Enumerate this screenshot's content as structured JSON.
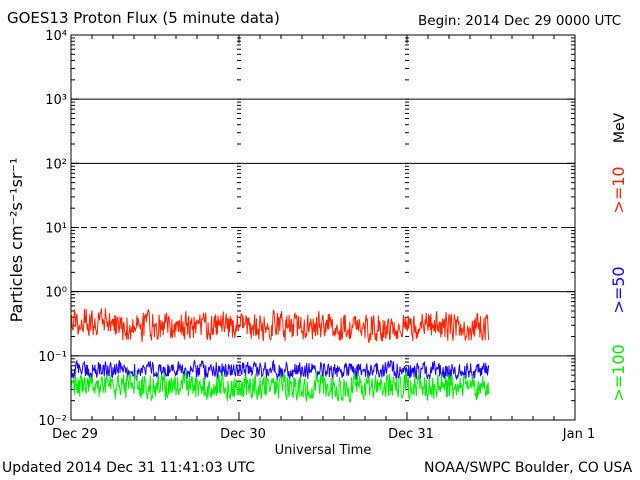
{
  "header": {
    "title": "GOES13 Proton Flux (5 minute data)",
    "begin": "Begin: 2014 Dec 29 0000 UTC"
  },
  "footer": {
    "updated": "Updated 2014 Dec 31 11:41:03 UTC",
    "source": "NOAA/SWPC Boulder, CO USA"
  },
  "chart_data": {
    "type": "line",
    "title": "GOES13 Proton Flux (5 minute data)",
    "xlabel": "Universal Time",
    "ylabel": "Particles cm⁻²s⁻¹sr⁻¹",
    "y_scale": "log",
    "ylim": [
      0.01,
      10000
    ],
    "xlim": [
      "2014-12-29 00:00",
      "2015-01-01 00:00"
    ],
    "x_ticks": [
      "Dec 29",
      "Dec 30",
      "Dec 31",
      "Jan 1"
    ],
    "y_ticks": [
      "10⁻²",
      "10⁻¹",
      "10⁰",
      "10¹",
      "10²",
      "10³",
      "10⁴"
    ],
    "grid": true,
    "dashed_gridline_y": 10,
    "energy_unit": "MeV",
    "series_colors": {
      "p10": "#ff2200",
      "p50": "#1a00ff",
      "p100": "#00ee00"
    },
    "series": [
      {
        "name": ">=10",
        "color": "#ff2200",
        "typical_range": [
          0.15,
          0.55
        ]
      },
      {
        "name": ">=50",
        "color": "#1a00ff",
        "typical_range": [
          0.04,
          0.09
        ]
      },
      {
        "name": ">=100",
        "color": "#00ee00",
        "typical_range": [
          0.018,
          0.06
        ]
      }
    ],
    "data_end": "2014-12-31 11:40"
  }
}
